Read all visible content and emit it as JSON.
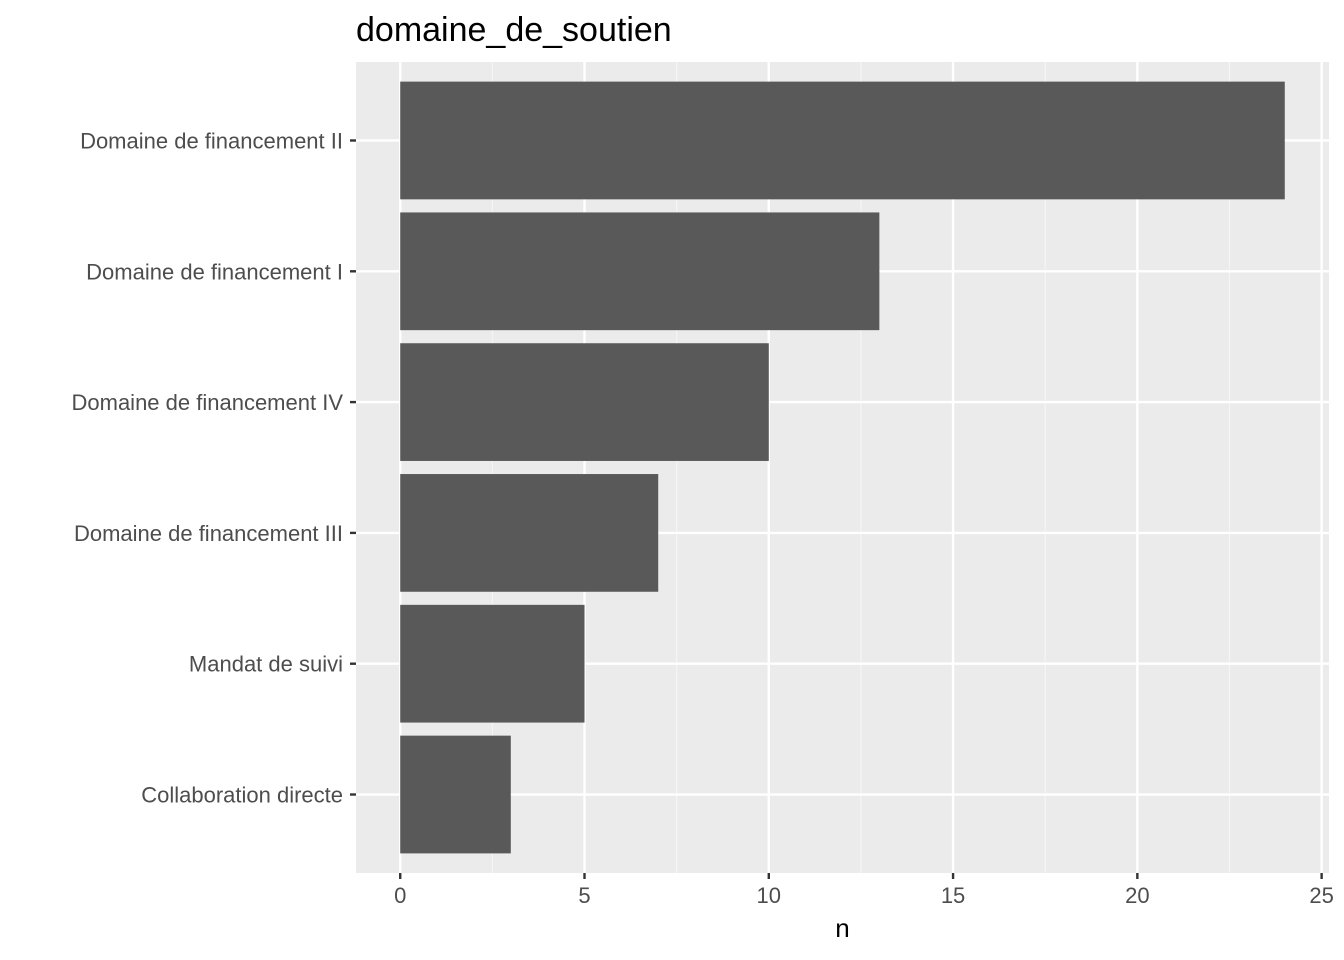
{
  "chart_data": {
    "type": "bar",
    "orientation": "horizontal",
    "title": "domaine_de_soutien",
    "xlabel": "n",
    "ylabel": "",
    "categories": [
      "Domaine de financement II",
      "Domaine de financement I",
      "Domaine de financement IV",
      "Domaine de financement III",
      "Mandat de suivi",
      "Collaboration directe"
    ],
    "values": [
      24,
      13,
      10,
      7,
      5,
      3
    ],
    "xlim": [
      -1.2,
      25.2
    ],
    "x_ticks": [
      0,
      5,
      10,
      15,
      20,
      25
    ],
    "x_tick_labels": [
      "0",
      "5",
      "10",
      "15",
      "20",
      "25"
    ],
    "x_minor_ticks": [
      2.5,
      7.5,
      12.5,
      17.5,
      22.5
    ],
    "grid": true,
    "legend": "none",
    "colors": {
      "bar": "#595959",
      "panel_background": "#ebebeb",
      "grid_major": "#ffffff",
      "grid_minor": "#f5f5f5",
      "tick": "#333333",
      "tick_label": "#4d4d4d",
      "text": "#000000"
    }
  }
}
